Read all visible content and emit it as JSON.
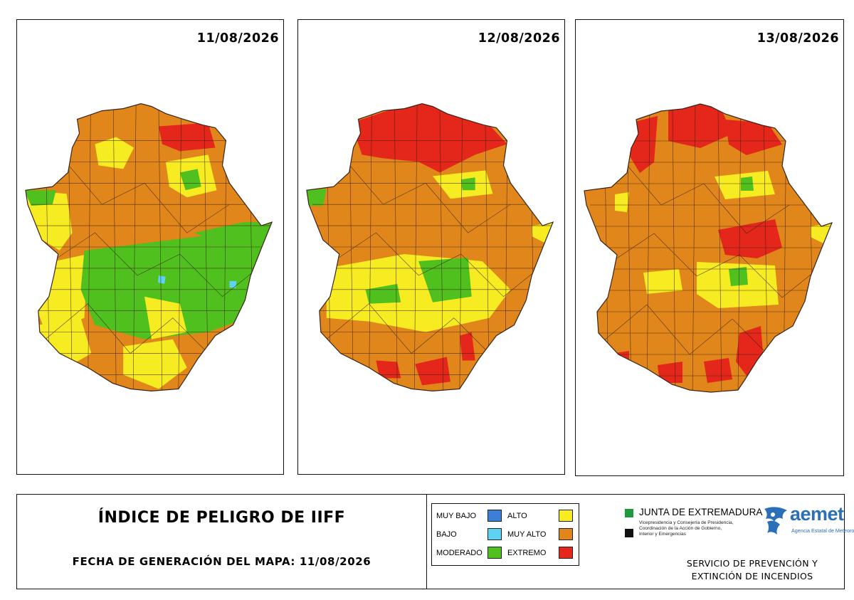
{
  "panels": [
    {
      "date": "11/08/2026",
      "dominant": "#e0861a",
      "zones": [
        {
          "level": "EXTREMO",
          "area": "north-east"
        },
        {
          "level": "MODERADO",
          "area": "center-south"
        },
        {
          "level": "ALTO",
          "area": "west and south patches"
        }
      ]
    },
    {
      "date": "12/08/2026",
      "dominant": "#e0861a",
      "zones": [
        {
          "level": "EXTREMO",
          "area": "north"
        },
        {
          "level": "MODERADO",
          "area": "center small patches"
        },
        {
          "level": "ALTO",
          "area": "center"
        }
      ]
    },
    {
      "date": "13/08/2026",
      "dominant": "#e0861a",
      "zones": [
        {
          "level": "EXTREMO",
          "area": "north, north-east center and south-east"
        },
        {
          "level": "ALTO",
          "area": "center"
        }
      ]
    }
  ],
  "title": "ÍNDICE DE PELIGRO DE IIFF",
  "generation": "FECHA DE GENERACIÓN DEL MAPA: 11/08/2026",
  "legend": {
    "left": [
      {
        "label": "MUY BAJO",
        "color": "#3d7ed6"
      },
      {
        "label": "BAJO",
        "color": "#5fd1f2"
      },
      {
        "label": "MODERADO",
        "color": "#4fc01e"
      }
    ],
    "right": [
      {
        "label": "ALTO",
        "color": "#f7ec21"
      },
      {
        "label": "MUY ALTO",
        "color": "#e0861a"
      },
      {
        "label": "EXTREMO",
        "color": "#e4261b"
      }
    ]
  },
  "junta": {
    "title": "JUNTA DE EXTREMADURA",
    "sub1": "Vicepresidencia y Consejería de Presidencia,",
    "sub2": "Coordinación de la Acción de Gobierno,",
    "sub3": "Interior y Emergencias",
    "green": "#1c9a3c",
    "black": "#111111"
  },
  "aemet": {
    "name": "aemet",
    "subtitle": "Agencia Estatal de Meteorología",
    "color": "#2a6fb8"
  },
  "service": {
    "line1": "SERVICIO DE PREVENCIÓN Y",
    "line2": "EXTINCIÓN DE INCENDIOS"
  }
}
